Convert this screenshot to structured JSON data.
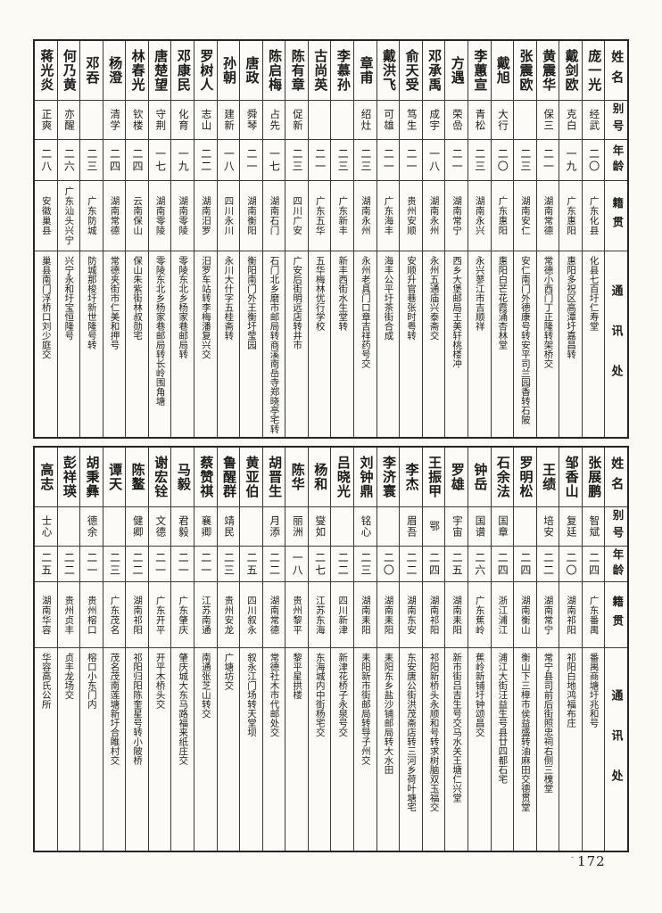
{
  "page": {
    "number": "172",
    "number_mark": "-"
  },
  "header_labels": {
    "name": "姓名",
    "alias": "别号",
    "age": "年龄",
    "native": "籍贯",
    "address": "通讯处"
  },
  "tables": [
    {
      "entries": [
        {
          "name": "庞一光",
          "alias": "经武",
          "age": "二〇",
          "native": "广东化县",
          "address": "化县七百圩仁寿堂"
        },
        {
          "name": "戴剑欧",
          "alias": "克白",
          "age": "一九",
          "native": "广东惠阳",
          "address": "惠阳多祝区高潭圩嘉昌转"
        },
        {
          "name": "黄震华",
          "alias": "保三",
          "age": "二一",
          "native": "湖南常德",
          "address": "常德小西门丁正隆转架桥交"
        },
        {
          "name": "张震欧",
          "alias": "",
          "age": "二三",
          "native": "湖南安仁",
          "address": "安仁南门外德康号转安平司兰园香转石陂"
        },
        {
          "name": "戴旭",
          "alias": "大行",
          "age": "二〇",
          "native": "广东惠阳",
          "address": "惠阳白芒花霞涌杏林堂"
        },
        {
          "name": "李蕙宣",
          "alias": "青松",
          "age": "二三",
          "native": "湖南永兴",
          "address": "永兴蓼江市吉顺祥"
        },
        {
          "name": "方遇",
          "alias": "荣嵒",
          "age": "二一",
          "native": "湖南常宁",
          "address": "西乡大堡邮局王美轩桃楼冲"
        },
        {
          "name": "邓承禹",
          "alias": "成宇",
          "age": "一八",
          "native": "湖南永州",
          "address": "永州五通庙兴泰斋交"
        },
        {
          "name": "俞天受",
          "alias": "笃生",
          "age": "二一",
          "native": "贵州安顺",
          "address": "安顺升官巷张时粤转"
        },
        {
          "name": "戴洪飞",
          "alias": "可雄",
          "age": "二一",
          "native": "广东海丰",
          "address": "海丰公平圩茶街合成"
        },
        {
          "name": "章甫",
          "alias": "绍灶",
          "age": "二三",
          "native": "湖南永州",
          "address": "永州老具门口章吉祥药号交"
        },
        {
          "name": "李慕孙",
          "alias": "",
          "age": "二三",
          "native": "广东新丰",
          "address": "新丰西街水生堂转"
        },
        {
          "name": "古尚英",
          "alias": "",
          "age": "二一",
          "native": "广东五华",
          "address": "五华梅林优行学校"
        },
        {
          "name": "陈有章",
          "alias": "促新",
          "age": "二三",
          "native": "四川广安",
          "address": "广安后街明远店转井市"
        },
        {
          "name": "陈启梅",
          "alias": "占先",
          "age": "一七",
          "native": "湖南石门",
          "address": "石门北乡磨市邮局转商溪南岳寺郑晓亭宅转"
        },
        {
          "name": "唐政",
          "alias": "舜琴",
          "age": "二一",
          "native": "湖南衡阳",
          "address": "衡阳南门外王衡圩莹园"
        },
        {
          "name": "孙朝",
          "alias": "建新",
          "age": "一八",
          "native": "四川永川",
          "address": "永川大什字五桂斋转"
        },
        {
          "name": "罗树人",
          "alias": "志山",
          "age": "二二",
          "native": "湖南汨罗",
          "address": "汨罗车站转李梅潘复兴交"
        },
        {
          "name": "邓康民",
          "alias": "化育",
          "age": "一九",
          "native": "湖南零陵",
          "address": "零陵东北乡杨家巷邮局转"
        },
        {
          "name": "唐楚望",
          "alias": "守荆",
          "age": "一七",
          "native": "湖南零陵",
          "address": "零陵东北乡杨家巷邮局转长岭围角塘"
        },
        {
          "name": "林春光",
          "alias": "钦楼",
          "age": "二四",
          "native": "云南保山",
          "address": "保山朱紫街林叔勋宅"
        },
        {
          "name": "杨澄",
          "alias": "清学",
          "age": "二四",
          "native": "湖南常德",
          "address": "常德夹街市仁美和押号"
        },
        {
          "name": "邓吞",
          "alias": "",
          "age": "二三",
          "native": "广东防城",
          "address": "防城那梭圩新世隆号转"
        },
        {
          "name": "何乃黄",
          "alias": "亦醒",
          "age": "二六",
          "native": "广东汕头兴宁",
          "address": "兴宁永和圩宝恒隆号"
        },
        {
          "name": "蒋光炎",
          "alias": "正爽",
          "age": "二八",
          "native": "安徽巢县",
          "address": "巢县南门浮桥口刘少庭交"
        }
      ]
    },
    {
      "entries": [
        {
          "name": "张展鹏",
          "alias": "智斌",
          "age": "二四",
          "native": "广东番禺",
          "address": "番禺商塘圩兆和号"
        },
        {
          "name": "邹香山",
          "alias": "复廷",
          "age": "二〇",
          "native": "湖南祁阳",
          "address": "祁阳白地鸿福布庄"
        },
        {
          "name": "王绩",
          "alias": "培安",
          "age": "二二",
          "native": "湖南常宁",
          "address": "常宁县司前后街照忠祠右侧三槐堂"
        },
        {
          "name": "罗明松",
          "alias": "",
          "age": "二四",
          "native": "湖南衡山",
          "address": "衡山下三樟市侯益盛转油麻田交德贯堂"
        },
        {
          "name": "石余法",
          "alias": "国章",
          "age": "二四",
          "native": "浙江浦江",
          "address": "浦江大街汪益生号县廿四都石宅"
        },
        {
          "name": "钟岳",
          "alias": "国谱",
          "age": "二六",
          "native": "广东蕉岭",
          "address": "蕉岭新铺圩钟颂昌交"
        },
        {
          "name": "罗雄",
          "alias": "宇宙",
          "age": "二五",
          "native": "湖南耒阳",
          "address": "新市街吕吉生号交马水关王塘仁兴堂"
        },
        {
          "name": "王振甲",
          "alias": "鄂",
          "age": "二四",
          "native": "湖南祁阳",
          "address": "祁阳新桥头永顺和号转求树脑双玉福交"
        },
        {
          "name": "李杰",
          "alias": "眉吾",
          "age": "二二",
          "native": "湖南东安",
          "address": "东安唐公街洪茂斋店转三河乡荷叶塘宅"
        },
        {
          "name": "李济寰",
          "alias": "",
          "age": "二〇",
          "native": "湖南耒阳",
          "address": "耒阳东乡盐沙铺邮局转大水田"
        },
        {
          "name": "刘钟鼎",
          "alias": "铭心",
          "age": "二三",
          "native": "湖南耒阳",
          "address": "耒阳新市街邮局转导子州交"
        },
        {
          "name": "吕晓光",
          "alias": "",
          "age": "二二",
          "native": "四川新津",
          "address": "新津花桥子永泉号交"
        },
        {
          "name": "杨和",
          "alias": "燮如",
          "age": "二七",
          "native": "江苏东海",
          "address": "东海城内中街杨宅交"
        },
        {
          "name": "陈华",
          "alias": "丽洲",
          "age": "一八",
          "native": "贵州黎平",
          "address": "黎平星拱楼"
        },
        {
          "name": "胡晋生",
          "alias": "月添",
          "age": "二二",
          "native": "湖南常德",
          "address": "常德社木市代邮处交"
        },
        {
          "name": "黄亚伯",
          "alias": "",
          "age": "二五",
          "native": "四川叙永",
          "address": "叙永江门场转天堂坝"
        },
        {
          "name": "鲁醒群",
          "alias": "靖民",
          "age": "二三",
          "native": "贵州安龙",
          "address": "广塘坊交"
        },
        {
          "name": "蔡赞祺",
          "alias": "襄卿",
          "age": "二一",
          "native": "江苏南通",
          "address": "南通张芝山转交"
        },
        {
          "name": "马毅",
          "alias": "君毅",
          "age": "二一",
          "native": "广东肇庆",
          "address": "肇庆城大东马路福来纸庄交"
        },
        {
          "name": "谢宏铨",
          "alias": "文德",
          "age": "二一",
          "native": "广东开平",
          "address": "开平木桥头交"
        },
        {
          "name": "陈鳌",
          "alias": "健卿",
          "age": "二二",
          "native": "湖南祁阳",
          "address": "祁阳归阳陈奎星号转小陂桥"
        },
        {
          "name": "谭天",
          "alias": "",
          "age": "二三",
          "native": "广东茂名",
          "address": "茂名茂南莲塘新圩合睢村交"
        },
        {
          "name": "胡秉彝",
          "alias": "德余",
          "age": "二一",
          "native": "贵州榕口",
          "address": "榕口小东门内"
        },
        {
          "name": "彭祥瑛",
          "alias": "",
          "age": "二二",
          "native": "贵州贞丰",
          "address": "贞丰龙场交"
        },
        {
          "name": "高志",
          "alias": "士心",
          "age": "二五",
          "native": "湖南华容",
          "address": "华容高氏公所"
        }
      ]
    }
  ]
}
